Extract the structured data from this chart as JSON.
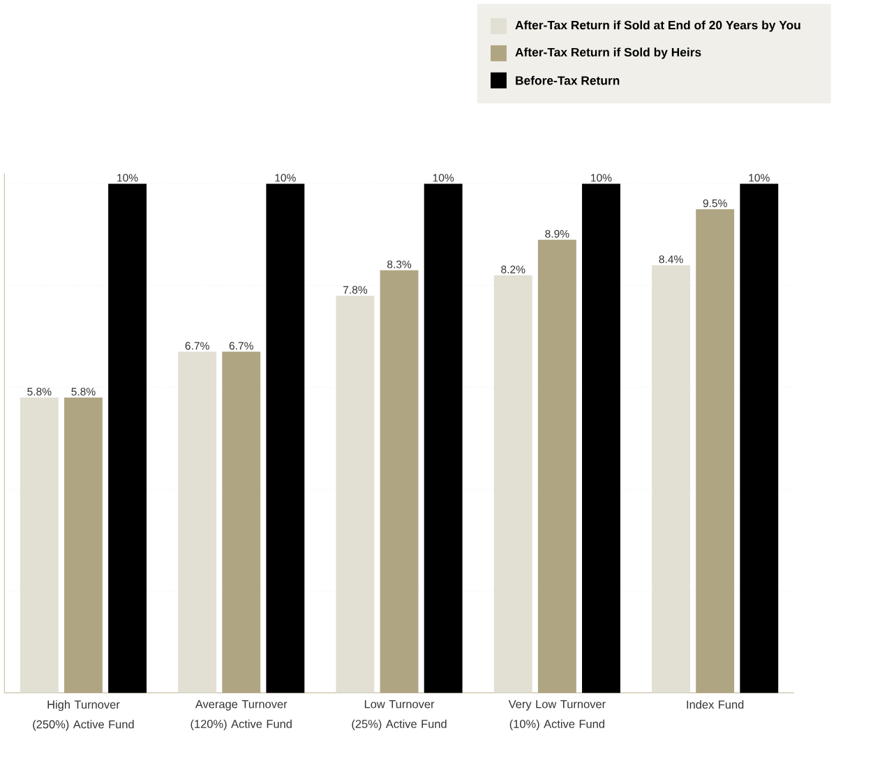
{
  "chart_data": {
    "type": "bar",
    "categories": [
      "High Turnover (250%) Active Fund",
      "Average Turnover (120%) Active Fund",
      "Low Turnover (25%) Active Fund",
      "Very Low Turnover (10%) Active Fund",
      "Index Fund"
    ],
    "series": [
      {
        "name": "After-Tax Return if Sold at End of 20 Years by You",
        "color": "#e2dfd3",
        "values": [
          5.8,
          6.7,
          7.8,
          8.2,
          8.4
        ],
        "value_labels": [
          "5.8%",
          "6.7%",
          "7.8%",
          "8.2%",
          "8.4%"
        ]
      },
      {
        "name": "After-Tax Return if Sold by Heirs",
        "color": "#b0a583",
        "values": [
          5.8,
          6.7,
          8.3,
          8.9,
          9.5
        ],
        "value_labels": [
          "5.8%",
          "6.7%",
          "8.3%",
          "8.9%",
          "9.5%"
        ]
      },
      {
        "name": "Before-Tax Return",
        "color": "#000000",
        "values": [
          10,
          10,
          10,
          10,
          10
        ],
        "value_labels": [
          "10%",
          "10%",
          "10%",
          "10%",
          "10%"
        ]
      }
    ],
    "ylim": [
      0,
      10.2
    ],
    "yticks": [
      {
        "value": 0,
        "label": null
      },
      {
        "value": 2,
        "label": null
      },
      {
        "value": 4,
        "label": null
      },
      {
        "value": 6,
        "label": null
      },
      {
        "value": 8,
        "label": null
      },
      {
        "value": 10,
        "label": null
      }
    ],
    "tick_labels": "x",
    "grid": "y",
    "legend": "top right"
  }
}
